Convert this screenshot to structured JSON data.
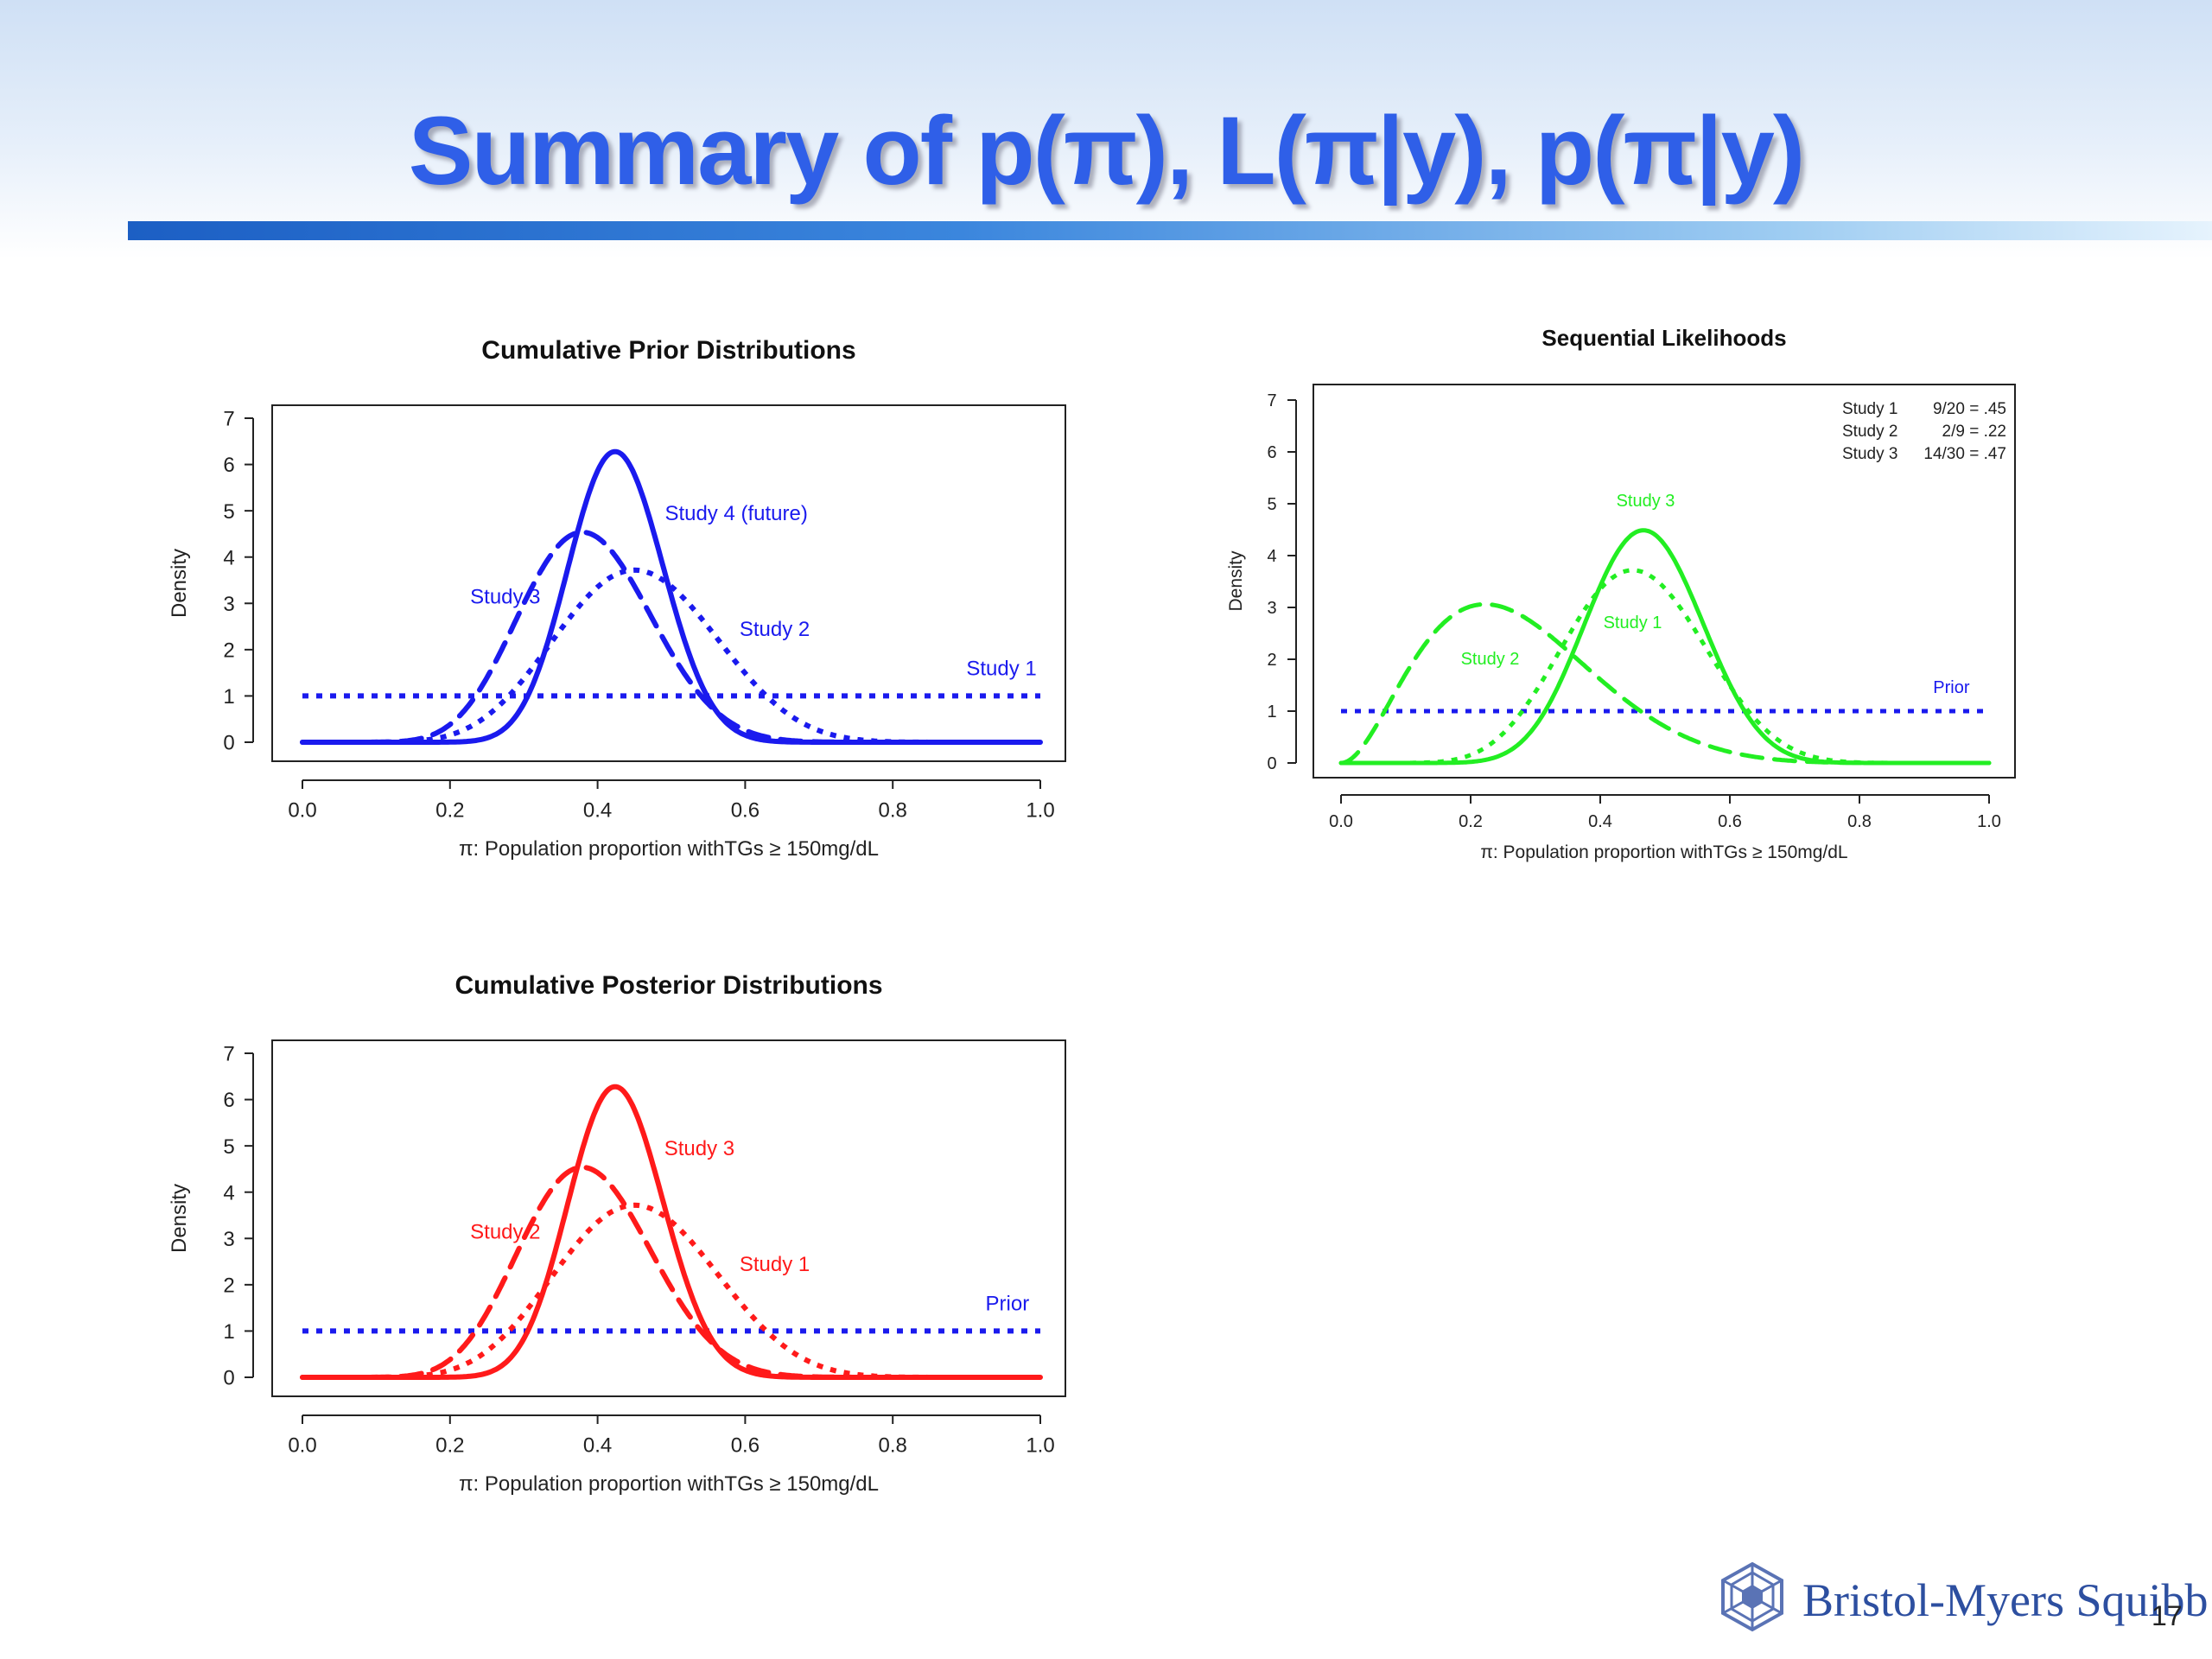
{
  "slide": {
    "title": "Summary of p(π),  L(π|y),  p(π|y)",
    "page_number": "17",
    "brand": "Bristol-Myers Squibb"
  },
  "chart_data": [
    {
      "id": "prior",
      "type": "line",
      "title": "Cumulative Prior Distributions",
      "xlabel": "π: Population proportion withTGs ≥ 150mg/dL",
      "ylabel": "Density",
      "xlim": [
        0,
        1
      ],
      "ylim": [
        0,
        7
      ],
      "xticks": [
        "0.0",
        "0.2",
        "0.4",
        "0.6",
        "0.8",
        "1.0"
      ],
      "yticks": [
        "0",
        "1",
        "2",
        "3",
        "4",
        "5",
        "6",
        "7"
      ],
      "grid": false,
      "color": "#1a1aee",
      "series": [
        {
          "name": "Study 1",
          "style": "dotted",
          "kind": "uniform",
          "x": [
            0,
            1
          ],
          "y": [
            1,
            1
          ],
          "label_at": [
            0.995,
            1.45
          ]
        },
        {
          "name": "Study 2",
          "style": "dotted",
          "kind": "beta",
          "alpha": 10,
          "beta": 12,
          "peak": [
            0.455,
            3.7
          ],
          "label_at": [
            0.64,
            2.3
          ]
        },
        {
          "name": "Study 3",
          "style": "dashed",
          "kind": "beta",
          "alpha": 12,
          "beta": 19,
          "peak": [
            0.377,
            4.5
          ],
          "label_at": [
            0.275,
            3.0
          ]
        },
        {
          "name": "Study 4 (future)",
          "style": "solid",
          "kind": "beta",
          "alpha": 26,
          "beta": 35,
          "peak": [
            0.424,
            6.25
          ],
          "label_at": [
            0.588,
            4.8
          ]
        }
      ]
    },
    {
      "id": "likelihood",
      "type": "line",
      "title": "Sequential Likelihoods",
      "xlabel": "π: Population proportion withTGs ≥ 150mg/dL",
      "ylabel": "Density",
      "xlim": [
        0,
        1
      ],
      "ylim": [
        0,
        7
      ],
      "xticks": [
        "0.0",
        "0.2",
        "0.4",
        "0.6",
        "0.8",
        "1.0"
      ],
      "yticks": [
        "0",
        "1",
        "2",
        "3",
        "4",
        "5",
        "6",
        "7"
      ],
      "grid": false,
      "color": "#22ee22",
      "prior_color": "#1a1aee",
      "legend_text": [
        [
          "Study 1",
          "9/20 = .45"
        ],
        [
          "Study 2",
          "2/9 = .22"
        ],
        [
          "Study 3",
          "14/30 = .47"
        ]
      ],
      "legend_position": "top-right",
      "series": [
        {
          "name": "Prior",
          "style": "dotted",
          "kind": "uniform",
          "x": [
            0,
            1
          ],
          "y": [
            1,
            1
          ],
          "label_at": [
            0.97,
            1.35
          ]
        },
        {
          "name": "Study 1",
          "style": "dotted",
          "kind": "beta",
          "alpha": 10,
          "beta": 12,
          "peak": [
            0.455,
            3.7
          ],
          "label_at": [
            0.45,
            2.6
          ]
        },
        {
          "name": "Study 2",
          "style": "dashed",
          "kind": "beta",
          "alpha": 3,
          "beta": 8,
          "peak": [
            0.222,
            3.1
          ],
          "label_at": [
            0.23,
            1.9
          ]
        },
        {
          "name": "Study 3",
          "style": "solid",
          "kind": "beta",
          "alpha": 15,
          "beta": 17,
          "peak": [
            0.467,
            4.5
          ],
          "label_at": [
            0.47,
            4.95
          ]
        }
      ]
    },
    {
      "id": "posterior",
      "type": "line",
      "title": "Cumulative Posterior Distributions",
      "xlabel": "π: Population proportion withTGs ≥ 150mg/dL",
      "ylabel": "Density",
      "xlim": [
        0,
        1
      ],
      "ylim": [
        0,
        7
      ],
      "xticks": [
        "0.0",
        "0.2",
        "0.4",
        "0.6",
        "0.8",
        "1.0"
      ],
      "yticks": [
        "0",
        "1",
        "2",
        "3",
        "4",
        "5",
        "6",
        "7"
      ],
      "grid": false,
      "color": "#ff1a1a",
      "prior_color": "#1a1aee",
      "series": [
        {
          "name": "Prior",
          "style": "dotted",
          "kind": "uniform",
          "x": [
            0,
            1
          ],
          "y": [
            1,
            1
          ],
          "label_at": [
            0.985,
            1.45
          ]
        },
        {
          "name": "Study 1",
          "style": "dotted",
          "kind": "beta",
          "alpha": 10,
          "beta": 12,
          "peak": [
            0.455,
            3.7
          ],
          "label_at": [
            0.64,
            2.3
          ]
        },
        {
          "name": "Study 2",
          "style": "dashed",
          "kind": "beta",
          "alpha": 12,
          "beta": 19,
          "peak": [
            0.377,
            4.5
          ],
          "label_at": [
            0.275,
            3.0
          ]
        },
        {
          "name": "Study 3",
          "style": "solid",
          "kind": "beta",
          "alpha": 26,
          "beta": 35,
          "peak": [
            0.424,
            6.25
          ],
          "label_at": [
            0.538,
            4.8
          ]
        }
      ]
    }
  ]
}
